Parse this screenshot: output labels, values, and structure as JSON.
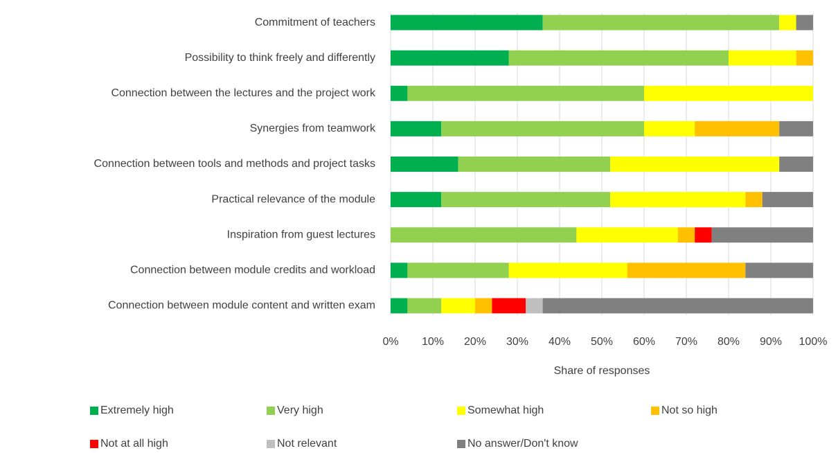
{
  "chart_data": {
    "type": "stacked_barh",
    "x_label": "Share of responses",
    "categories": [
      "Commitment of teachers",
      "Possibility to think freely and differently",
      "Connection between the lectures and the project work",
      "Synergies from teamwork",
      "Connection between tools and methods and project tasks",
      "Practical relevance of the module",
      "Inspiration from guest lectures",
      "Connection between module credits and workload",
      "Connection between module content and written exam"
    ],
    "series": [
      {
        "name": "Extremely high",
        "color": "#00b050",
        "values": [
          36,
          28,
          4,
          12,
          16,
          12,
          0,
          4,
          4
        ]
      },
      {
        "name": "Very high",
        "color": "#92d050",
        "values": [
          56,
          52,
          56,
          48,
          36,
          40,
          44,
          24,
          8
        ]
      },
      {
        "name": "Somewhat high",
        "color": "#ffff00",
        "values": [
          4,
          16,
          40,
          12,
          40,
          32,
          24,
          28,
          8
        ]
      },
      {
        "name": "Not so high",
        "color": "#ffc000",
        "values": [
          0,
          4,
          0,
          20,
          0,
          4,
          4,
          28,
          4
        ]
      },
      {
        "name": "Not at all high",
        "color": "#ff0000",
        "values": [
          0,
          0,
          0,
          0,
          0,
          0,
          4,
          0,
          8
        ]
      },
      {
        "name": "Not relevant",
        "color": "#bfbfbf",
        "values": [
          0,
          0,
          0,
          0,
          0,
          0,
          0,
          0,
          4
        ]
      },
      {
        "name": "No answer/Don't know",
        "color": "#808080",
        "values": [
          4,
          0,
          0,
          8,
          8,
          12,
          24,
          16,
          64
        ]
      }
    ],
    "xlim": [
      0,
      100
    ],
    "xticks": [
      {
        "value": 0,
        "label": "0%"
      },
      {
        "value": 10,
        "label": "10%"
      },
      {
        "value": 20,
        "label": "20%"
      },
      {
        "value": 30,
        "label": "30%"
      },
      {
        "value": 40,
        "label": "40%"
      },
      {
        "value": 50,
        "label": "50%"
      },
      {
        "value": 60,
        "label": "60%"
      },
      {
        "value": 70,
        "label": "70%"
      },
      {
        "value": 80,
        "label": "80%"
      },
      {
        "value": 90,
        "label": "90%"
      },
      {
        "value": 100,
        "label": "100%"
      }
    ],
    "grid": true
  }
}
